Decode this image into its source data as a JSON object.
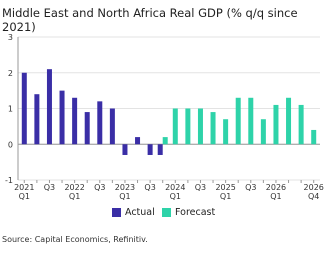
{
  "chart_data": {
    "type": "bar",
    "title": "Middle East and North Africa Real GDP (% q/q since 2021)",
    "categories": [
      "2021\nQ1",
      null,
      "Q3",
      null,
      "2022\nQ1",
      null,
      "Q3",
      null,
      "2023\nQ1",
      null,
      "Q3",
      null,
      "2024\nQ1",
      null,
      "Q3",
      null,
      "2025\nQ1",
      null,
      "Q3",
      null,
      "2026\nQ1",
      null,
      null,
      "2026\nQ4"
    ],
    "series": [
      {
        "name": "Actual",
        "color": "#3a2ea6",
        "values": [
          2.0,
          1.4,
          2.1,
          1.5,
          1.3,
          0.9,
          1.2,
          1.0,
          -0.3,
          0.2,
          -0.3,
          -0.3,
          null,
          null,
          null,
          null,
          null,
          null,
          null,
          null,
          null,
          null,
          null,
          null
        ]
      },
      {
        "name": "Forecast",
        "color": "#2ed3a9",
        "values": [
          null,
          null,
          null,
          null,
          null,
          null,
          null,
          null,
          null,
          null,
          null,
          0.2,
          1.0,
          1.0,
          1.0,
          0.9,
          0.7,
          1.3,
          1.3,
          0.7,
          1.1,
          1.3,
          1.1,
          0.4
        ]
      }
    ],
    "ylim": [
      -1,
      3
    ],
    "yticks": [
      -1,
      0,
      1,
      2,
      3
    ],
    "grid": true,
    "source": "Source: Capital Economics, Refinitiv."
  }
}
